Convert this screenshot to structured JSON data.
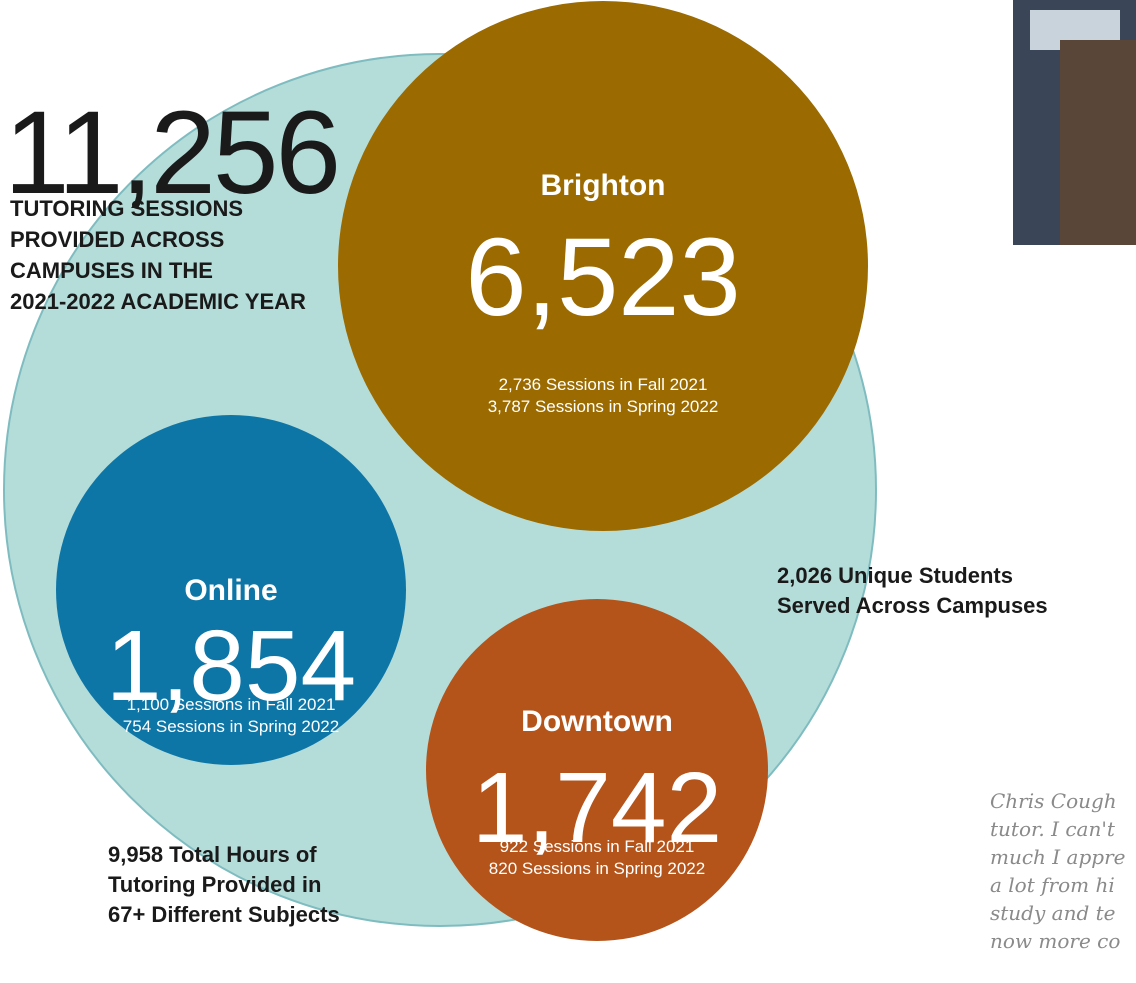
{
  "headline": {
    "number": "11,256",
    "lines": [
      "TUTORING SESSIONS",
      "PROVIDED ACROSS",
      "CAMPUSES IN THE",
      "2021-2022 ACADEMIC YEAR"
    ]
  },
  "campuses": [
    {
      "name": "Brighton",
      "total": "6,523",
      "lines": [
        "2,736 Sessions in Fall 2021",
        "3,787 Sessions in Spring 2022"
      ]
    },
    {
      "name": "Online",
      "total": "1,854",
      "lines": [
        "1,100 Sessions in Fall 2021",
        "754 Sessions in Spring 2022"
      ]
    },
    {
      "name": "Downtown",
      "total": "1,742",
      "lines": [
        "922 Sessions in Fall 2021",
        "820 Sessions in Spring 2022"
      ]
    }
  ],
  "stats": [
    {
      "lines": [
        "2,026 Unique Students",
        "Served Across Campuses"
      ]
    },
    {
      "lines": [
        "9,958 Total Hours of",
        "Tutoring Provided in",
        "67+ Different Subjects"
      ]
    }
  ],
  "quote": {
    "lines": [
      "Chris Cough",
      "tutor. I can't",
      "much I appre",
      "a lot from hi",
      "study and te",
      "now more co"
    ]
  }
}
